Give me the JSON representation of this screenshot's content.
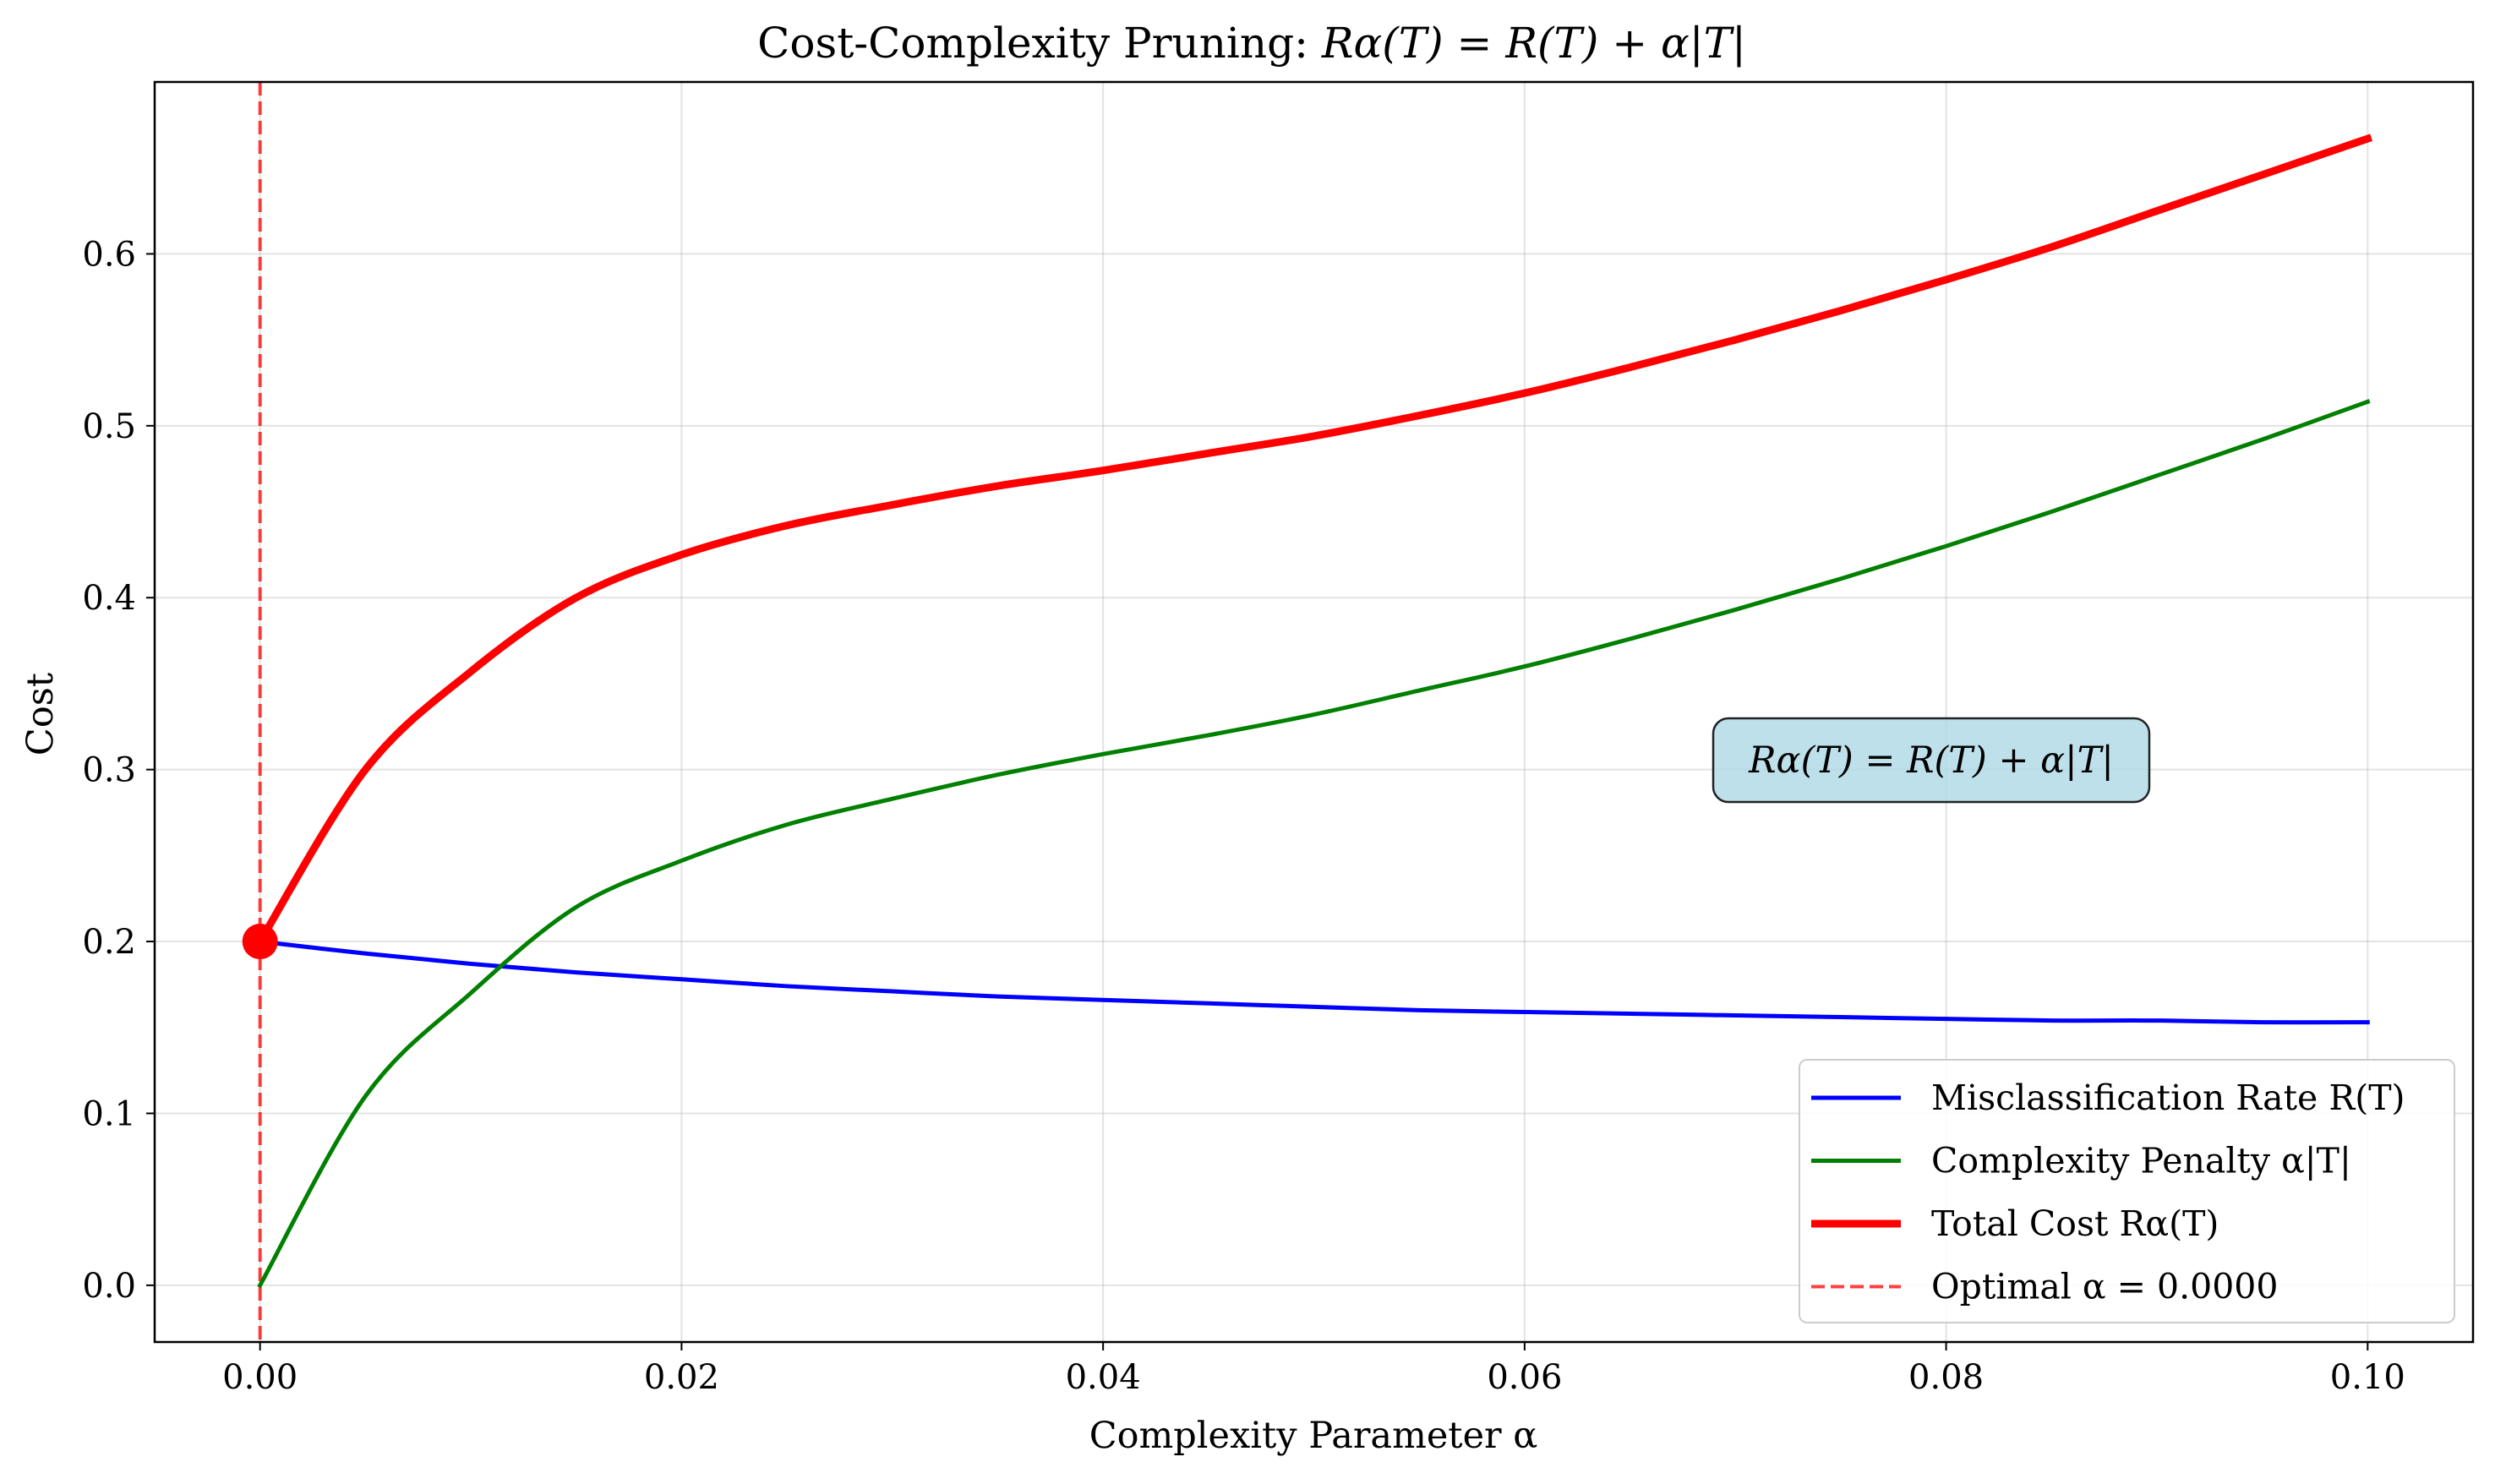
{
  "chart_data": {
    "type": "line",
    "title": {
      "prefix": "Cost-Complexity Pruning: ",
      "formula": "Rα(T) = R(T) + α|T|"
    },
    "xlabel": "Complexity Parameter α",
    "ylabel": "Cost",
    "xlim": [
      -0.005,
      0.105
    ],
    "ylim": [
      -0.033,
      0.7
    ],
    "x_ticks": [
      0.0,
      0.02,
      0.04,
      0.06,
      0.08,
      0.1
    ],
    "x_tick_labels": [
      "0.00",
      "0.02",
      "0.04",
      "0.06",
      "0.08",
      "0.10"
    ],
    "y_ticks": [
      0.0,
      0.1,
      0.2,
      0.3,
      0.4,
      0.5,
      0.6
    ],
    "y_tick_labels": [
      "0.0",
      "0.1",
      "0.2",
      "0.3",
      "0.4",
      "0.5",
      "0.6"
    ],
    "grid": true,
    "legend_position": "lower-right",
    "series": [
      {
        "name": "Misclassification Rate R(T)",
        "color": "#0000ff",
        "style": "solid",
        "width": "normal",
        "x": [
          0.0,
          0.005,
          0.01,
          0.015,
          0.02,
          0.025,
          0.03,
          0.035,
          0.04,
          0.045,
          0.05,
          0.055,
          0.06,
          0.065,
          0.07,
          0.075,
          0.08,
          0.085,
          0.09,
          0.095,
          0.1
        ],
        "y": [
          0.2,
          0.193,
          0.187,
          0.182,
          0.178,
          0.174,
          0.171,
          0.168,
          0.166,
          0.164,
          0.162,
          0.16,
          0.159,
          0.158,
          0.157,
          0.156,
          0.155,
          0.154,
          0.154,
          0.153,
          0.153
        ]
      },
      {
        "name": "Complexity Penalty α|T|",
        "color": "#008000",
        "style": "solid",
        "width": "normal",
        "x": [
          0.0,
          0.005,
          0.01,
          0.015,
          0.02,
          0.025,
          0.03,
          0.035,
          0.04,
          0.045,
          0.05,
          0.055,
          0.06,
          0.065,
          0.07,
          0.075,
          0.08,
          0.085,
          0.09,
          0.095,
          0.1
        ],
        "y": [
          0.0,
          0.11,
          0.17,
          0.22,
          0.247,
          0.268,
          0.283,
          0.297,
          0.309,
          0.32,
          0.332,
          0.346,
          0.36,
          0.376,
          0.393,
          0.411,
          0.43,
          0.45,
          0.471,
          0.492,
          0.514
        ]
      },
      {
        "name": "Total Cost Rα(T)",
        "color": "#ff0000",
        "style": "solid",
        "width": "thick",
        "x": [
          0.0,
          0.005,
          0.01,
          0.015,
          0.02,
          0.025,
          0.03,
          0.035,
          0.04,
          0.045,
          0.05,
          0.055,
          0.06,
          0.065,
          0.07,
          0.075,
          0.08,
          0.085,
          0.09,
          0.095,
          0.1
        ],
        "y": [
          0.2,
          0.3,
          0.357,
          0.4,
          0.425,
          0.442,
          0.454,
          0.465,
          0.474,
          0.484,
          0.494,
          0.506,
          0.519,
          0.534,
          0.55,
          0.567,
          0.585,
          0.604,
          0.625,
          0.646,
          0.667
        ]
      }
    ],
    "reference_line": {
      "name": "Optimal α = 0.0000",
      "orientation": "vertical",
      "x": 0.0,
      "color": "#ff0000",
      "style": "dashed"
    },
    "marker": {
      "x": 0.0,
      "y": 0.2,
      "color": "#ff0000"
    },
    "annotation": {
      "text": "Rα(T) = R(T) + α|T|",
      "x": 0.0795,
      "y": 0.3,
      "box_color": "#add8e6"
    }
  }
}
